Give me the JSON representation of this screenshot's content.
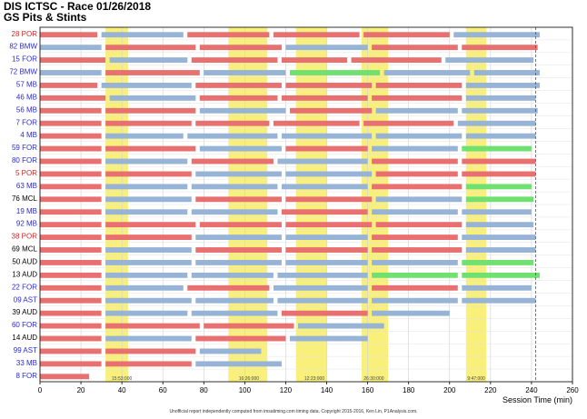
{
  "header": {
    "title": "DIS ICTSC - Race 01/26/2018",
    "subtitle": "GS Pits & Stints"
  },
  "footer": "Unofficial report independently computed from imsatiming.com timing data. Copyright 2015-2016, Ken Lin, P1Analysis.com.",
  "chart_data": {
    "type": "bar",
    "title": "DIS ICTSC - Race 01/26/2018",
    "subtitle": "GS Pits & Stints",
    "xlabel": "Session Time (min)",
    "xlim": [
      0,
      260
    ],
    "xticks": [
      0,
      20,
      40,
      60,
      80,
      100,
      120,
      140,
      160,
      180,
      200,
      220,
      240,
      260
    ],
    "grid": true,
    "colors": {
      "red_stint": "#e87070",
      "blue_stint": "#97b3d6",
      "green_stint": "#70e070",
      "yellow_period": "#f8f07a",
      "label_red": "#c82828",
      "label_blue": "#2a2ad0"
    },
    "caution_periods": [
      [
        32,
        43
      ],
      [
        92,
        111
      ],
      [
        125,
        140
      ],
      [
        157,
        170
      ],
      [
        208,
        218
      ]
    ],
    "caution_labels": [
      {
        "x": 40,
        "text": "15:53:000"
      },
      {
        "x": 102,
        "text": "16:26:000"
      },
      {
        "x": 134,
        "text": "12:23:000"
      },
      {
        "x": 163,
        "text": "26:30:000"
      },
      {
        "x": 213,
        "text": "9:47:000"
      }
    ],
    "finish_line_x": 242,
    "rows": [
      {
        "label": "28 POR",
        "color": "red",
        "segments": [
          [
            0,
            28,
            "red"
          ],
          [
            30,
            70,
            "blue"
          ],
          [
            72,
            112,
            "red"
          ],
          [
            114,
            156,
            "red"
          ],
          [
            158,
            200,
            "red"
          ],
          [
            202,
            244,
            "blue"
          ]
        ]
      },
      {
        "label": "82 BMW",
        "color": "blue",
        "segments": [
          [
            0,
            30,
            "blue"
          ],
          [
            32,
            76,
            "red"
          ],
          [
            78,
            118,
            "red"
          ],
          [
            120,
            160,
            "blue"
          ],
          [
            162,
            204,
            "red"
          ],
          [
            206,
            243,
            "red"
          ]
        ]
      },
      {
        "label": "15 FOR",
        "color": "blue",
        "segments": [
          [
            0,
            32,
            "red"
          ],
          [
            34,
            72,
            "blue"
          ],
          [
            74,
            116,
            "red"
          ],
          [
            118,
            150,
            "red"
          ],
          [
            152,
            196,
            "red"
          ],
          [
            198,
            241,
            "blue"
          ]
        ]
      },
      {
        "label": "72 BMW",
        "color": "blue",
        "segments": [
          [
            0,
            30,
            "blue"
          ],
          [
            32,
            78,
            "red"
          ],
          [
            80,
            120,
            "blue"
          ],
          [
            122,
            166,
            "green"
          ],
          [
            168,
            210,
            "blue"
          ],
          [
            212,
            244,
            "blue"
          ]
        ]
      },
      {
        "label": "57 MB",
        "color": "blue",
        "segments": [
          [
            0,
            28,
            "red"
          ],
          [
            30,
            74,
            "blue"
          ],
          [
            76,
            118,
            "red"
          ],
          [
            120,
            162,
            "red"
          ],
          [
            164,
            206,
            "red"
          ],
          [
            208,
            244,
            "blue"
          ]
        ]
      },
      {
        "label": "46 MB",
        "color": "blue",
        "segments": [
          [
            0,
            32,
            "red"
          ],
          [
            34,
            76,
            "blue"
          ],
          [
            78,
            116,
            "red"
          ],
          [
            118,
            160,
            "red"
          ],
          [
            162,
            206,
            "red"
          ],
          [
            208,
            242,
            "blue"
          ]
        ]
      },
      {
        "label": "56 MB",
        "color": "blue",
        "segments": [
          [
            0,
            30,
            "red"
          ],
          [
            32,
            76,
            "red"
          ],
          [
            78,
            120,
            "blue"
          ],
          [
            122,
            162,
            "red"
          ],
          [
            164,
            204,
            "blue"
          ],
          [
            206,
            243,
            "blue"
          ]
        ]
      },
      {
        "label": "7 FOR",
        "color": "blue",
        "segments": [
          [
            0,
            30,
            "red"
          ],
          [
            32,
            74,
            "red"
          ],
          [
            76,
            112,
            "red"
          ],
          [
            114,
            156,
            "red"
          ],
          [
            158,
            202,
            "red"
          ],
          [
            204,
            242,
            "blue"
          ]
        ]
      },
      {
        "label": "4 MB",
        "color": "blue",
        "segments": [
          [
            0,
            30,
            "red"
          ],
          [
            32,
            70,
            "blue"
          ],
          [
            72,
            116,
            "blue"
          ],
          [
            118,
            162,
            "blue"
          ],
          [
            164,
            206,
            "blue"
          ],
          [
            208,
            242,
            "blue"
          ]
        ]
      },
      {
        "label": "59 FOR",
        "color": "blue",
        "segments": [
          [
            0,
            30,
            "red"
          ],
          [
            32,
            76,
            "red"
          ],
          [
            78,
            118,
            "blue"
          ],
          [
            120,
            160,
            "red"
          ],
          [
            162,
            204,
            "blue"
          ],
          [
            206,
            240,
            "green"
          ]
        ]
      },
      {
        "label": "80 FOR",
        "color": "blue",
        "segments": [
          [
            0,
            30,
            "red"
          ],
          [
            32,
            72,
            "blue"
          ],
          [
            74,
            114,
            "red"
          ],
          [
            116,
            160,
            "blue"
          ],
          [
            162,
            204,
            "red"
          ],
          [
            206,
            242,
            "red"
          ]
        ]
      },
      {
        "label": "5 POR",
        "color": "red",
        "segments": [
          [
            0,
            30,
            "red"
          ],
          [
            32,
            74,
            "red"
          ],
          [
            76,
            118,
            "blue"
          ],
          [
            120,
            162,
            "blue"
          ],
          [
            164,
            204,
            "red"
          ],
          [
            206,
            242,
            "red"
          ]
        ]
      },
      {
        "label": "63 MB",
        "color": "blue",
        "segments": [
          [
            0,
            30,
            "red"
          ],
          [
            32,
            72,
            "blue"
          ],
          [
            74,
            116,
            "blue"
          ],
          [
            118,
            160,
            "blue"
          ],
          [
            162,
            206,
            "red"
          ],
          [
            208,
            240,
            "green"
          ]
        ]
      },
      {
        "label": "76 MCL",
        "color": "black",
        "segments": [
          [
            0,
            30,
            "red"
          ],
          [
            32,
            74,
            "blue"
          ],
          [
            76,
            118,
            "red"
          ],
          [
            120,
            162,
            "red"
          ],
          [
            164,
            206,
            "blue"
          ],
          [
            208,
            241,
            "green"
          ]
        ]
      },
      {
        "label": "19 MB",
        "color": "blue",
        "segments": [
          [
            0,
            30,
            "red"
          ],
          [
            32,
            72,
            "blue"
          ],
          [
            74,
            116,
            "blue"
          ],
          [
            118,
            160,
            "red"
          ],
          [
            162,
            204,
            "blue"
          ],
          [
            206,
            240,
            "blue"
          ]
        ]
      },
      {
        "label": "92 MB",
        "color": "blue",
        "segments": [
          [
            0,
            30,
            "red"
          ],
          [
            32,
            76,
            "red"
          ],
          [
            78,
            118,
            "red"
          ],
          [
            120,
            162,
            "red"
          ],
          [
            164,
            206,
            "red"
          ],
          [
            208,
            241,
            "blue"
          ]
        ]
      },
      {
        "label": "38 POR",
        "color": "red",
        "segments": [
          [
            0,
            30,
            "red"
          ],
          [
            32,
            74,
            "red"
          ],
          [
            76,
            118,
            "blue"
          ],
          [
            120,
            160,
            "blue"
          ],
          [
            162,
            204,
            "red"
          ],
          [
            206,
            242,
            "blue"
          ]
        ]
      },
      {
        "label": "69 MCL",
        "color": "black",
        "segments": [
          [
            0,
            30,
            "red"
          ],
          [
            32,
            74,
            "blue"
          ],
          [
            76,
            118,
            "red"
          ],
          [
            120,
            160,
            "red"
          ],
          [
            162,
            206,
            "red"
          ],
          [
            208,
            242,
            "blue"
          ]
        ]
      },
      {
        "label": "50 AUD",
        "color": "black",
        "segments": [
          [
            0,
            30,
            "red"
          ],
          [
            32,
            74,
            "blue"
          ],
          [
            76,
            118,
            "blue"
          ],
          [
            120,
            160,
            "blue"
          ],
          [
            162,
            204,
            "blue"
          ],
          [
            206,
            241,
            "green"
          ]
        ]
      },
      {
        "label": "13 AUD",
        "color": "black",
        "segments": [
          [
            0,
            30,
            "red"
          ],
          [
            32,
            72,
            "blue"
          ],
          [
            74,
            114,
            "blue"
          ],
          [
            116,
            160,
            "blue"
          ],
          [
            162,
            204,
            "green"
          ],
          [
            206,
            244,
            "green"
          ]
        ]
      },
      {
        "label": "22 FOR",
        "color": "blue",
        "segments": [
          [
            0,
            30,
            "red"
          ],
          [
            32,
            70,
            "blue"
          ],
          [
            72,
            112,
            "red"
          ],
          [
            114,
            160,
            "blue"
          ],
          [
            162,
            204,
            "red"
          ],
          [
            206,
            240,
            "blue"
          ]
        ]
      },
      {
        "label": "09 AST",
        "color": "blue",
        "segments": [
          [
            0,
            30,
            "red"
          ],
          [
            32,
            74,
            "blue"
          ],
          [
            76,
            114,
            "blue"
          ],
          [
            116,
            160,
            "blue"
          ],
          [
            162,
            204,
            "blue"
          ],
          [
            206,
            242,
            "blue"
          ]
        ]
      },
      {
        "label": "39 AUD",
        "color": "black",
        "segments": [
          [
            0,
            30,
            "red"
          ],
          [
            32,
            72,
            "blue"
          ],
          [
            74,
            116,
            "blue"
          ],
          [
            118,
            160,
            "red"
          ],
          [
            162,
            200,
            "blue"
          ]
        ]
      },
      {
        "label": "60 FOR",
        "color": "blue",
        "segments": [
          [
            0,
            30,
            "red"
          ],
          [
            32,
            78,
            "red"
          ],
          [
            80,
            124,
            "red"
          ],
          [
            126,
            168,
            "blue"
          ]
        ]
      },
      {
        "label": "14 AUD",
        "color": "black",
        "segments": [
          [
            0,
            30,
            "red"
          ],
          [
            32,
            74,
            "blue"
          ],
          [
            76,
            120,
            "red"
          ],
          [
            122,
            160,
            "blue"
          ]
        ]
      },
      {
        "label": "99 AST",
        "color": "blue",
        "segments": [
          [
            0,
            30,
            "red"
          ],
          [
            32,
            76,
            "red"
          ],
          [
            78,
            108,
            "blue"
          ]
        ]
      },
      {
        "label": "33 MB",
        "color": "blue",
        "segments": [
          [
            0,
            30,
            "red"
          ],
          [
            32,
            74,
            "red"
          ],
          [
            76,
            118,
            "blue"
          ]
        ]
      },
      {
        "label": "8 FOR",
        "color": "blue",
        "segments": [
          [
            0,
            24,
            "red"
          ]
        ]
      }
    ]
  }
}
